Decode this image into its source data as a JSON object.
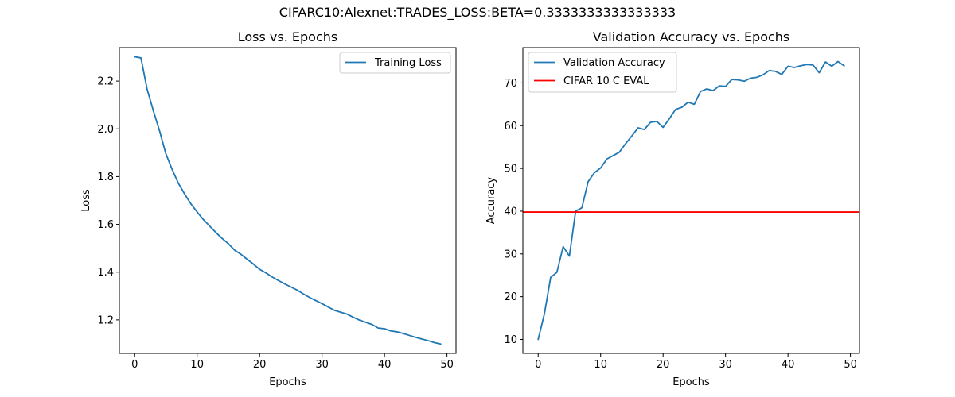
{
  "figure": {
    "suptitle": "CIFARC10:Alexnet:TRADES_LOSS:BETA=0.3333333333333333"
  },
  "chart_data": [
    {
      "type": "line",
      "title": "Loss vs. Epochs",
      "xlabel": "Epochs",
      "ylabel": "Loss",
      "xlim": [
        -2.45,
        51.45
      ],
      "ylim": [
        1.06,
        2.34
      ],
      "xticks": [
        0,
        10,
        20,
        30,
        40,
        50
      ],
      "yticks": [
        1.2,
        1.4,
        1.6,
        1.8,
        2.0,
        2.2
      ],
      "ytick_labels": [
        "1.2",
        "1.4",
        "1.6",
        "1.8",
        "2.0",
        "2.2"
      ],
      "grid": false,
      "legend_position": "top-right",
      "series": [
        {
          "name": "Training Loss",
          "color": "#1f77b4",
          "x": [
            0,
            1,
            2,
            3,
            4,
            5,
            6,
            7,
            8,
            9,
            10,
            11,
            12,
            13,
            14,
            15,
            16,
            17,
            18,
            19,
            20,
            21,
            22,
            23,
            24,
            25,
            26,
            27,
            28,
            29,
            30,
            31,
            32,
            33,
            34,
            35,
            36,
            37,
            38,
            39,
            40,
            41,
            42,
            43,
            44,
            45,
            46,
            47,
            48,
            49
          ],
          "values": [
            2.302,
            2.297,
            2.165,
            2.075,
            1.99,
            1.895,
            1.83,
            1.772,
            1.727,
            1.686,
            1.652,
            1.62,
            1.593,
            1.566,
            1.541,
            1.519,
            1.492,
            1.475,
            1.454,
            1.434,
            1.412,
            1.397,
            1.38,
            1.365,
            1.351,
            1.338,
            1.325,
            1.309,
            1.294,
            1.281,
            1.268,
            1.254,
            1.24,
            1.232,
            1.224,
            1.211,
            1.199,
            1.19,
            1.181,
            1.166,
            1.163,
            1.154,
            1.15,
            1.143,
            1.135,
            1.127,
            1.12,
            1.113,
            1.105,
            1.099
          ]
        }
      ]
    },
    {
      "type": "line",
      "title": "Validation Accuracy vs. Epochs",
      "xlabel": "Epochs",
      "ylabel": "Accuracy",
      "xlim": [
        -2.45,
        51.45
      ],
      "ylim": [
        6.75,
        78.25
      ],
      "xticks": [
        0,
        10,
        20,
        30,
        40,
        50
      ],
      "yticks": [
        10,
        20,
        30,
        40,
        50,
        60,
        70
      ],
      "ytick_labels": [
        "10",
        "20",
        "30",
        "40",
        "50",
        "60",
        "70"
      ],
      "grid": false,
      "legend_position": "top-left",
      "series": [
        {
          "name": "Validation Accuracy",
          "color": "#1f77b4",
          "x": [
            0,
            1,
            2,
            3,
            4,
            5,
            6,
            7,
            8,
            9,
            10,
            11,
            12,
            13,
            14,
            15,
            16,
            17,
            18,
            19,
            20,
            21,
            22,
            23,
            24,
            25,
            26,
            27,
            28,
            29,
            30,
            31,
            32,
            33,
            34,
            35,
            36,
            37,
            38,
            39,
            40,
            41,
            42,
            43,
            44,
            45,
            46,
            47,
            48,
            49
          ],
          "values": [
            10.0,
            16.0,
            24.5,
            25.7,
            31.7,
            29.5,
            40.0,
            40.8,
            46.9,
            49.0,
            50.1,
            52.2,
            53.0,
            53.8,
            55.8,
            57.6,
            59.5,
            59.1,
            60.8,
            61.0,
            59.6,
            61.6,
            63.8,
            64.3,
            65.5,
            65.0,
            68.0,
            68.6,
            68.2,
            69.3,
            69.2,
            70.8,
            70.7,
            70.4,
            71.1,
            71.3,
            71.9,
            72.9,
            72.7,
            72.0,
            73.9,
            73.6,
            74.0,
            74.3,
            74.2,
            72.4,
            74.9,
            73.9,
            75.0,
            74.0
          ]
        },
        {
          "name": "CIFAR 10 C EVAL",
          "color": "#ff0000",
          "kind": "hline",
          "y": 39.8
        }
      ]
    }
  ]
}
